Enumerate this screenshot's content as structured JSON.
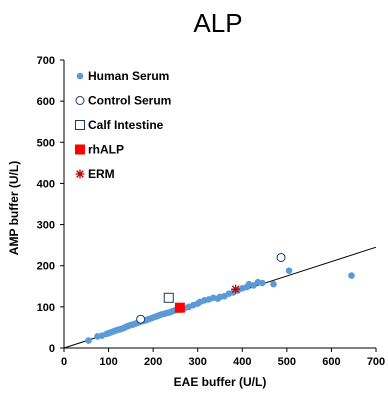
{
  "chart_data": {
    "type": "scatter",
    "title": "ALP",
    "xlabel": "EAE buffer (U/L)",
    "ylabel": "AMP buffer (U/L)",
    "xlim": [
      0,
      700
    ],
    "ylim": [
      0,
      700
    ],
    "xticks": [
      "0",
      "100",
      "200",
      "300",
      "400",
      "500",
      "600",
      "700"
    ],
    "yticks": [
      "0",
      "100",
      "200",
      "300",
      "400",
      "500",
      "600",
      "700"
    ],
    "grid": false,
    "legend_position": "top-left",
    "regression_line": {
      "x": [
        0,
        700
      ],
      "y": [
        0,
        245
      ]
    },
    "series": [
      {
        "name": "Human Serum",
        "marker": "filled-circle",
        "color": "#5b9bd5",
        "points": [
          [
            55,
            18
          ],
          [
            75,
            28
          ],
          [
            85,
            30
          ],
          [
            95,
            34
          ],
          [
            100,
            36
          ],
          [
            105,
            38
          ],
          [
            110,
            40
          ],
          [
            115,
            42
          ],
          [
            120,
            44
          ],
          [
            125,
            45
          ],
          [
            130,
            47
          ],
          [
            135,
            49
          ],
          [
            140,
            52
          ],
          [
            145,
            54
          ],
          [
            150,
            56
          ],
          [
            155,
            57
          ],
          [
            160,
            59
          ],
          [
            165,
            61
          ],
          [
            170,
            63
          ],
          [
            175,
            65
          ],
          [
            180,
            66
          ],
          [
            185,
            68
          ],
          [
            190,
            70
          ],
          [
            195,
            72
          ],
          [
            200,
            74
          ],
          [
            205,
            76
          ],
          [
            210,
            78
          ],
          [
            215,
            80
          ],
          [
            220,
            82
          ],
          [
            225,
            83
          ],
          [
            230,
            85
          ],
          [
            235,
            86
          ],
          [
            240,
            88
          ],
          [
            245,
            90
          ],
          [
            250,
            92
          ],
          [
            255,
            94
          ],
          [
            260,
            93
          ],
          [
            270,
            96
          ],
          [
            280,
            100
          ],
          [
            290,
            104
          ],
          [
            300,
            108
          ],
          [
            305,
            112
          ],
          [
            315,
            116
          ],
          [
            325,
            118
          ],
          [
            335,
            122
          ],
          [
            345,
            120
          ],
          [
            350,
            124
          ],
          [
            360,
            126
          ],
          [
            370,
            132
          ],
          [
            380,
            135
          ],
          [
            390,
            140
          ],
          [
            400,
            145
          ],
          [
            410,
            148
          ],
          [
            415,
            155
          ],
          [
            425,
            152
          ],
          [
            435,
            160
          ],
          [
            445,
            158
          ],
          [
            470,
            155
          ],
          [
            505,
            188
          ],
          [
            645,
            176
          ]
        ]
      },
      {
        "name": "Control Serum",
        "marker": "open-circle",
        "color": "#1f3864",
        "points": [
          [
            172,
            70
          ],
          [
            487,
            220
          ]
        ]
      },
      {
        "name": "Calf Intestine",
        "marker": "open-square",
        "color": "#1f3864",
        "points": [
          [
            235,
            122
          ]
        ]
      },
      {
        "name": "rhALP",
        "marker": "filled-square",
        "color": "#ff0000",
        "points": [
          [
            260,
            98
          ]
        ]
      },
      {
        "name": "ERM",
        "marker": "asterisk",
        "color": "#c00000",
        "points": [
          [
            385,
            143
          ]
        ]
      }
    ]
  }
}
